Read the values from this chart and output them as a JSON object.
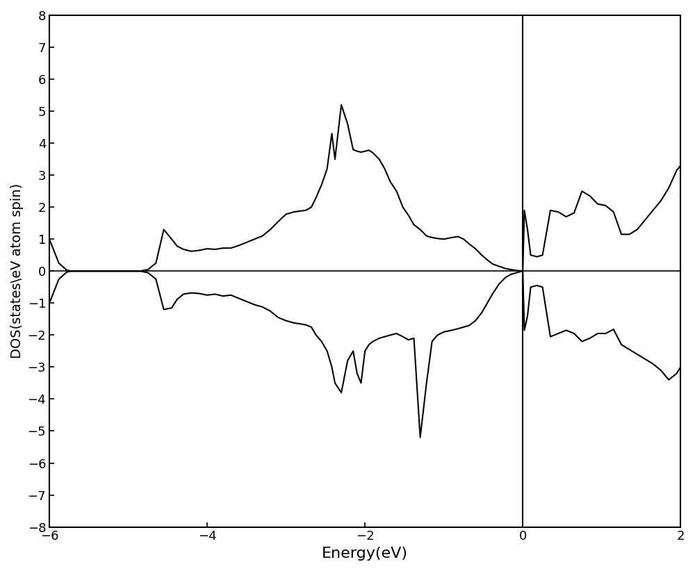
{
  "xlabel": "Energy(eV)",
  "ylabel": "DOS(states\\eV atom spin)",
  "xlim": [
    -6,
    2
  ],
  "ylim": [
    -8,
    8
  ],
  "xticks": [
    -6,
    -4,
    -2,
    0,
    2
  ],
  "yticks": [
    -8,
    -7,
    -6,
    -5,
    -4,
    -3,
    -2,
    -1,
    0,
    1,
    2,
    3,
    4,
    5,
    6,
    7,
    8
  ],
  "vline_x": 0,
  "hline_y": 0,
  "line_color": "#000000",
  "bg_color": "#ffffff",
  "line_width": 1.5,
  "figsize": [
    10.0,
    8.22
  ],
  "dpi": 100,
  "x_up": [
    -6.0,
    -5.88,
    -5.78,
    -5.72,
    -5.6,
    -5.5,
    -5.3,
    -5.1,
    -5.0,
    -4.85,
    -4.75,
    -4.65,
    -4.55,
    -4.45,
    -4.38,
    -4.3,
    -4.2,
    -4.1,
    -4.0,
    -3.9,
    -3.8,
    -3.7,
    -3.6,
    -3.5,
    -3.4,
    -3.3,
    -3.2,
    -3.1,
    -3.0,
    -2.9,
    -2.82,
    -2.75,
    -2.68,
    -2.62,
    -2.55,
    -2.48,
    -2.42,
    -2.38,
    -2.3,
    -2.22,
    -2.15,
    -2.1,
    -2.05,
    -2.0,
    -1.95,
    -1.9,
    -1.82,
    -1.75,
    -1.68,
    -1.6,
    -1.52,
    -1.45,
    -1.38,
    -1.3,
    -1.22,
    -1.15,
    -1.08,
    -1.0,
    -0.9,
    -0.82,
    -0.75,
    -0.68,
    -0.6,
    -0.52,
    -0.45,
    -0.38,
    -0.3,
    -0.22,
    -0.15,
    -0.08,
    -0.02,
    0.0,
    0.02,
    0.06,
    0.1,
    0.18,
    0.25,
    0.35,
    0.45,
    0.55,
    0.65,
    0.75,
    0.85,
    0.95,
    1.05,
    1.15,
    1.25,
    1.35,
    1.45,
    1.55,
    1.65,
    1.75,
    1.85,
    1.95,
    2.0
  ],
  "y_up": [
    1.0,
    0.25,
    0.03,
    0.0,
    0.0,
    0.0,
    0.0,
    0.0,
    0.0,
    0.0,
    0.05,
    0.25,
    1.3,
    1.0,
    0.78,
    0.68,
    0.62,
    0.65,
    0.7,
    0.68,
    0.72,
    0.72,
    0.8,
    0.9,
    1.0,
    1.1,
    1.3,
    1.55,
    1.78,
    1.85,
    1.88,
    1.9,
    2.0,
    2.3,
    2.7,
    3.2,
    4.3,
    3.5,
    5.2,
    4.6,
    3.8,
    3.75,
    3.72,
    3.75,
    3.78,
    3.7,
    3.5,
    3.2,
    2.8,
    2.5,
    2.0,
    1.75,
    1.45,
    1.3,
    1.1,
    1.05,
    1.02,
    1.0,
    1.05,
    1.08,
    1.0,
    0.85,
    0.7,
    0.5,
    0.35,
    0.22,
    0.15,
    0.08,
    0.05,
    0.02,
    0.01,
    0.0,
    1.9,
    1.3,
    0.5,
    0.45,
    0.5,
    1.9,
    1.85,
    1.7,
    1.82,
    2.5,
    2.35,
    2.1,
    2.05,
    1.85,
    1.15,
    1.15,
    1.3,
    1.6,
    1.9,
    2.2,
    2.6,
    3.15,
    3.3
  ],
  "x_dn": [
    -6.0,
    -5.88,
    -5.78,
    -5.72,
    -5.6,
    -5.5,
    -5.3,
    -5.1,
    -5.0,
    -4.85,
    -4.75,
    -4.65,
    -4.55,
    -4.45,
    -4.38,
    -4.3,
    -4.2,
    -4.1,
    -4.0,
    -3.9,
    -3.8,
    -3.7,
    -3.6,
    -3.5,
    -3.4,
    -3.3,
    -3.2,
    -3.1,
    -3.0,
    -2.9,
    -2.82,
    -2.75,
    -2.68,
    -2.62,
    -2.55,
    -2.48,
    -2.42,
    -2.38,
    -2.3,
    -2.22,
    -2.15,
    -2.1,
    -2.05,
    -2.0,
    -1.95,
    -1.9,
    -1.82,
    -1.75,
    -1.68,
    -1.6,
    -1.52,
    -1.45,
    -1.38,
    -1.3,
    -1.22,
    -1.15,
    -1.08,
    -1.0,
    -0.9,
    -0.82,
    -0.75,
    -0.68,
    -0.6,
    -0.52,
    -0.45,
    -0.38,
    -0.3,
    -0.22,
    -0.15,
    -0.08,
    -0.02,
    0.0,
    0.02,
    0.06,
    0.1,
    0.18,
    0.25,
    0.35,
    0.45,
    0.55,
    0.65,
    0.75,
    0.85,
    0.95,
    1.05,
    1.15,
    1.25,
    1.35,
    1.45,
    1.55,
    1.65,
    1.75,
    1.85,
    1.95,
    2.0
  ],
  "y_dn": [
    -1.0,
    -0.25,
    -0.03,
    0.0,
    0.0,
    0.0,
    0.0,
    0.0,
    0.0,
    0.0,
    -0.05,
    -0.25,
    -1.2,
    -1.15,
    -0.88,
    -0.72,
    -0.68,
    -0.7,
    -0.75,
    -0.72,
    -0.78,
    -0.75,
    -0.85,
    -0.95,
    -1.05,
    -1.12,
    -1.25,
    -1.45,
    -1.55,
    -1.62,
    -1.65,
    -1.68,
    -1.75,
    -2.0,
    -2.2,
    -2.5,
    -3.0,
    -3.5,
    -3.8,
    -2.8,
    -2.5,
    -3.2,
    -3.5,
    -2.5,
    -2.3,
    -2.2,
    -2.1,
    -2.05,
    -2.0,
    -1.95,
    -2.05,
    -2.15,
    -2.1,
    -5.2,
    -3.5,
    -2.2,
    -2.0,
    -1.9,
    -1.85,
    -1.8,
    -1.75,
    -1.7,
    -1.55,
    -1.3,
    -1.0,
    -0.7,
    -0.4,
    -0.2,
    -0.1,
    -0.05,
    -0.01,
    0.0,
    -1.85,
    -1.4,
    -0.5,
    -0.45,
    -0.5,
    -2.05,
    -1.95,
    -1.85,
    -1.95,
    -2.2,
    -2.1,
    -1.95,
    -1.95,
    -1.82,
    -2.3,
    -2.45,
    -2.6,
    -2.75,
    -2.9,
    -3.1,
    -3.4,
    -3.2,
    -3.0
  ]
}
